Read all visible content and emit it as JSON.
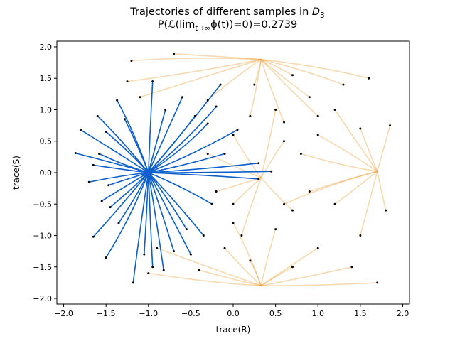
{
  "chart_data": {
    "type": "line",
    "title_line1_text": "Trajectories of different samples in D",
    "title_line1_subscript": "3",
    "title_line2_prefix": "P(ℒ(lim",
    "title_line2_limit": "t→∞",
    "title_line2_middle": "ϕ(t))=0)=",
    "title_line2_value": "0.2739",
    "xlabel": "trace(R)",
    "ylabel": "trace(S)",
    "xlim": [
      -2.08,
      2.08
    ],
    "ylim": [
      -2.09,
      2.09
    ],
    "xticks": [
      -2.0,
      -1.5,
      -1.0,
      -0.5,
      0.0,
      0.5,
      1.0,
      1.5,
      2.0
    ],
    "yticks": [
      -2.0,
      -1.5,
      -1.0,
      -0.5,
      0.0,
      0.5,
      1.0,
      1.5,
      2.0
    ],
    "xtick_labels": [
      "−2.0",
      "−1.5",
      "−1.0",
      "−0.5",
      "0.0",
      "0.5",
      "1.0",
      "1.5",
      "2.0"
    ],
    "ytick_labels": [
      "−2.0",
      "−1.5",
      "−1.0",
      "−0.5",
      "0.0",
      "0.5",
      "1.0",
      "1.5",
      "2.0"
    ],
    "grid": false,
    "legend": "none",
    "colors": {
      "class0": "#0a5fcc",
      "class1": "#e8921e",
      "start_marker": "#000000"
    },
    "attractors": {
      "class0": [
        [
          -1.0,
          0.0
        ]
      ],
      "class1": [
        [
          0.33,
          1.8
        ],
        [
          0.33,
          -1.8
        ],
        [
          0.33,
          -0.08
        ],
        [
          1.7,
          0.02
        ]
      ]
    },
    "series": [
      {
        "class": 0,
        "trajectories": [
          [
            [
              -1.6,
              0.9
            ],
            [
              -1.3,
              0.5
            ],
            [
              -1.0,
              0.0
            ]
          ],
          [
            [
              -1.8,
              0.68
            ],
            [
              -1.4,
              0.35
            ],
            [
              -1.0,
              0.0
            ]
          ],
          [
            [
              -1.86,
              0.31
            ],
            [
              -1.4,
              0.15
            ],
            [
              -1.0,
              0.0
            ]
          ],
          [
            [
              -1.65,
              0.12
            ],
            [
              -1.3,
              0.05
            ],
            [
              -1.0,
              0.0
            ]
          ],
          [
            [
              -1.7,
              -0.15
            ],
            [
              -1.35,
              -0.05
            ],
            [
              -1.0,
              0.0
            ]
          ],
          [
            [
              -1.55,
              -0.45
            ],
            [
              -1.25,
              -0.2
            ],
            [
              -1.0,
              0.0
            ]
          ],
          [
            [
              -1.65,
              -1.02
            ],
            [
              -1.3,
              -0.5
            ],
            [
              -1.0,
              0.0
            ]
          ],
          [
            [
              -1.5,
              -1.35
            ],
            [
              -1.2,
              -0.7
            ],
            [
              -1.0,
              0.0
            ]
          ],
          [
            [
              -1.37,
              1.15
            ],
            [
              -1.15,
              0.6
            ],
            [
              -1.0,
              0.0
            ]
          ],
          [
            [
              -1.5,
              0.65
            ],
            [
              -1.2,
              0.3
            ],
            [
              -1.0,
              0.0
            ]
          ],
          [
            [
              -1.58,
              0.3
            ],
            [
              -1.3,
              0.12
            ],
            [
              -1.0,
              0.0
            ]
          ],
          [
            [
              -1.47,
              -0.2
            ],
            [
              -1.2,
              -0.08
            ],
            [
              -1.0,
              0.0
            ]
          ],
          [
            [
              -1.35,
              -0.8
            ],
            [
              -1.15,
              -0.4
            ],
            [
              -1.0,
              0.0
            ]
          ],
          [
            [
              -1.18,
              -1.75
            ],
            [
              -1.1,
              -0.9
            ],
            [
              -1.0,
              0.0
            ]
          ],
          [
            [
              -0.95,
              -1.5
            ],
            [
              -0.98,
              -0.75
            ],
            [
              -1.0,
              0.0
            ]
          ],
          [
            [
              -0.7,
              -1.25
            ],
            [
              -0.85,
              -0.6
            ],
            [
              -1.0,
              0.0
            ]
          ],
          [
            [
              -0.82,
              -1.55
            ],
            [
              -0.9,
              -0.8
            ],
            [
              -1.0,
              0.0
            ]
          ],
          [
            [
              -0.95,
              1.45
            ],
            [
              -0.98,
              0.7
            ],
            [
              -1.0,
              0.0
            ]
          ],
          [
            [
              -0.8,
              1.0
            ],
            [
              -0.9,
              0.5
            ],
            [
              -1.0,
              0.0
            ]
          ],
          [
            [
              -0.6,
              1.2
            ],
            [
              -0.8,
              0.6
            ],
            [
              -1.0,
              0.0
            ]
          ],
          [
            [
              -0.45,
              0.9
            ],
            [
              -0.7,
              0.45
            ],
            [
              -1.0,
              0.0
            ]
          ],
          [
            [
              -0.3,
              0.78
            ],
            [
              -0.6,
              0.35
            ],
            [
              -1.0,
              0.0
            ]
          ],
          [
            [
              -0.2,
              1.05
            ],
            [
              -0.55,
              0.5
            ],
            [
              -1.0,
              0.0
            ]
          ],
          [
            [
              0.05,
              0.68
            ],
            [
              -0.45,
              0.3
            ],
            [
              -1.0,
              0.0
            ]
          ],
          [
            [
              0.3,
              0.15
            ],
            [
              -0.3,
              0.06
            ],
            [
              -1.0,
              0.0
            ]
          ],
          [
            [
              0.45,
              0.02
            ],
            [
              -0.2,
              0.0
            ],
            [
              -1.0,
              0.0
            ]
          ],
          [
            [
              0.3,
              -0.1
            ],
            [
              -0.3,
              -0.04
            ],
            [
              -1.0,
              0.0
            ]
          ],
          [
            [
              -0.55,
              -0.9
            ],
            [
              -0.75,
              -0.45
            ],
            [
              -1.0,
              0.0
            ]
          ],
          [
            [
              -0.35,
              -1.0
            ],
            [
              -0.65,
              -0.5
            ],
            [
              -1.0,
              0.0
            ]
          ],
          [
            [
              -0.5,
              -1.3
            ],
            [
              -0.75,
              -0.65
            ],
            [
              -1.0,
              0.0
            ]
          ],
          [
            [
              -1.05,
              -1.3
            ],
            [
              -1.02,
              -0.65
            ],
            [
              -1.0,
              0.0
            ]
          ],
          [
            [
              -1.28,
              0.85
            ],
            [
              -1.12,
              0.42
            ],
            [
              -1.0,
              0.0
            ]
          ],
          [
            [
              -0.1,
              0.3
            ],
            [
              -0.55,
              0.12
            ],
            [
              -1.0,
              0.0
            ]
          ],
          [
            [
              -0.25,
              -0.5
            ],
            [
              -0.6,
              -0.22
            ],
            [
              -1.0,
              0.0
            ]
          ],
          [
            [
              -1.45,
              -0.55
            ],
            [
              -1.2,
              -0.27
            ],
            [
              -1.0,
              0.0
            ]
          ],
          [
            [
              -0.15,
              1.4
            ],
            [
              -0.55,
              0.7
            ],
            [
              -1.0,
              0.0
            ]
          ]
        ]
      },
      {
        "class": 1,
        "trajectories": [
          [
            [
              -1.2,
              1.78
            ],
            [
              -0.4,
              1.85
            ],
            [
              0.33,
              1.8
            ]
          ],
          [
            [
              -0.7,
              1.89
            ],
            [
              -0.2,
              1.85
            ],
            [
              0.33,
              1.8
            ]
          ],
          [
            [
              -1.25,
              1.45
            ],
            [
              -0.4,
              1.6
            ],
            [
              0.33,
              1.8
            ]
          ],
          [
            [
              -0.3,
              1.15
            ],
            [
              0.0,
              1.5
            ],
            [
              0.33,
              1.8
            ]
          ],
          [
            [
              0.25,
              1.4
            ],
            [
              0.3,
              1.6
            ],
            [
              0.33,
              1.8
            ]
          ],
          [
            [
              0.7,
              1.55
            ],
            [
              0.5,
              1.7
            ],
            [
              0.33,
              1.8
            ]
          ],
          [
            [
              0.9,
              1.2
            ],
            [
              0.6,
              1.5
            ],
            [
              0.33,
              1.8
            ]
          ],
          [
            [
              1.3,
              1.4
            ],
            [
              0.8,
              1.65
            ],
            [
              0.33,
              1.8
            ]
          ],
          [
            [
              1.6,
              1.5
            ],
            [
              1.0,
              1.7
            ],
            [
              0.33,
              1.8
            ]
          ],
          [
            [
              0.2,
              0.9
            ],
            [
              0.28,
              1.35
            ],
            [
              0.33,
              1.8
            ]
          ],
          [
            [
              0.6,
              0.8
            ],
            [
              0.45,
              1.3
            ],
            [
              0.33,
              1.8
            ]
          ],
          [
            [
              1.0,
              0.9
            ],
            [
              0.65,
              1.35
            ],
            [
              0.33,
              1.8
            ]
          ],
          [
            [
              -0.4,
              -1.55
            ],
            [
              0.0,
              -1.7
            ],
            [
              0.33,
              -1.8
            ]
          ],
          [
            [
              -1.0,
              -1.6
            ],
            [
              -0.3,
              -1.75
            ],
            [
              0.33,
              -1.8
            ]
          ],
          [
            [
              -0.1,
              -1.2
            ],
            [
              0.1,
              -1.5
            ],
            [
              0.33,
              -1.8
            ]
          ],
          [
            [
              0.2,
              -1.4
            ],
            [
              0.28,
              -1.6
            ],
            [
              0.33,
              -1.8
            ]
          ],
          [
            [
              0.7,
              -1.5
            ],
            [
              0.5,
              -1.65
            ],
            [
              0.33,
              -1.8
            ]
          ],
          [
            [
              1.0,
              -1.2
            ],
            [
              0.65,
              -1.5
            ],
            [
              0.33,
              -1.8
            ]
          ],
          [
            [
              1.4,
              -1.5
            ],
            [
              0.9,
              -1.65
            ],
            [
              0.33,
              -1.8
            ]
          ],
          [
            [
              1.7,
              -1.75
            ],
            [
              1.0,
              -1.8
            ],
            [
              0.33,
              -1.8
            ]
          ],
          [
            [
              0.5,
              -0.9
            ],
            [
              0.4,
              -1.35
            ],
            [
              0.33,
              -1.8
            ]
          ],
          [
            [
              0.0,
              -0.8
            ],
            [
              0.2,
              -1.3
            ],
            [
              0.33,
              -1.8
            ]
          ],
          [
            [
              0.8,
              0.3
            ],
            [
              1.3,
              0.1
            ],
            [
              1.7,
              0.02
            ]
          ],
          [
            [
              1.0,
              0.6
            ],
            [
              1.4,
              0.3
            ],
            [
              1.7,
              0.02
            ]
          ],
          [
            [
              1.5,
              0.7
            ],
            [
              1.6,
              0.35
            ],
            [
              1.7,
              0.02
            ]
          ],
          [
            [
              1.85,
              0.75
            ],
            [
              1.78,
              0.4
            ],
            [
              1.7,
              0.02
            ]
          ],
          [
            [
              1.2,
              -0.5
            ],
            [
              1.45,
              -0.25
            ],
            [
              1.7,
              0.02
            ]
          ],
          [
            [
              1.5,
              -1.0
            ],
            [
              1.6,
              -0.5
            ],
            [
              1.7,
              0.02
            ]
          ],
          [
            [
              1.8,
              -0.6
            ],
            [
              1.75,
              -0.3
            ],
            [
              1.7,
              0.02
            ]
          ],
          [
            [
              0.9,
              -0.3
            ],
            [
              1.3,
              -0.12
            ],
            [
              1.7,
              0.02
            ]
          ],
          [
            [
              1.2,
              1.0
            ],
            [
              1.45,
              0.5
            ],
            [
              1.7,
              0.02
            ]
          ],
          [
            [
              0.6,
              -0.5
            ],
            [
              1.1,
              -0.2
            ],
            [
              1.7,
              0.02
            ]
          ],
          [
            [
              0.0,
              0.6
            ],
            [
              0.15,
              0.25
            ],
            [
              0.33,
              -0.08
            ]
          ],
          [
            [
              -0.3,
              0.3
            ],
            [
              0.0,
              0.1
            ],
            [
              0.33,
              -0.08
            ]
          ],
          [
            [
              0.0,
              -0.5
            ],
            [
              0.15,
              -0.3
            ],
            [
              0.33,
              -0.08
            ]
          ],
          [
            [
              0.6,
              0.5
            ],
            [
              0.45,
              0.2
            ],
            [
              0.33,
              -0.08
            ]
          ],
          [
            [
              0.7,
              -0.6
            ],
            [
              0.5,
              -0.35
            ],
            [
              0.33,
              -0.08
            ]
          ],
          [
            [
              -0.2,
              -0.3
            ],
            [
              0.05,
              -0.2
            ],
            [
              0.33,
              -0.08
            ]
          ],
          [
            [
              0.5,
              1.0
            ],
            [
              0.42,
              0.45
            ],
            [
              0.33,
              -0.08
            ]
          ],
          [
            [
              0.1,
              -1.0
            ],
            [
              0.2,
              -0.55
            ],
            [
              0.33,
              -0.08
            ]
          ],
          [
            [
              -0.9,
              -1.2
            ],
            [
              -0.3,
              -1.5
            ],
            [
              0.33,
              -1.8
            ]
          ],
          [
            [
              -1.1,
              1.2
            ],
            [
              -0.4,
              1.5
            ],
            [
              0.33,
              1.8
            ]
          ]
        ]
      }
    ]
  }
}
